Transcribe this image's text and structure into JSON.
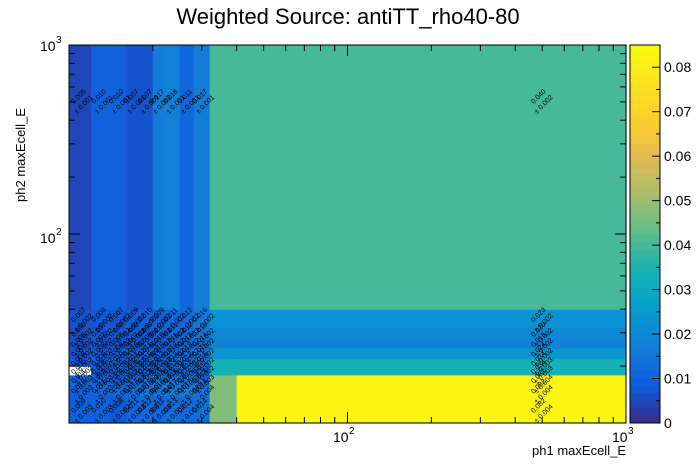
{
  "chart_data": {
    "type": "heatmap",
    "title": "Weighted Source: antiTT_rho40-80",
    "xlabel": "ph1 maxEcell_E",
    "ylabel": "ph2 maxEcell_E",
    "x_scale": "log",
    "y_scale": "log",
    "xlim": [
      10,
      1000
    ],
    "ylim": [
      10,
      1000
    ],
    "x_tick_labels": [
      {
        "value": 100,
        "base": "10",
        "exp": "2"
      },
      {
        "value": 1000,
        "base": "10",
        "exp": "3"
      }
    ],
    "y_tick_labels": [
      {
        "value": 100,
        "base": "10",
        "exp": "2"
      },
      {
        "value": 1000,
        "base": "10",
        "exp": "3"
      }
    ],
    "x_edges": [
      10,
      12,
      14,
      16,
      18,
      20,
      22,
      25,
      28,
      32,
      40,
      1000
    ],
    "y_edges": [
      10,
      14,
      16,
      18,
      20,
      22,
      25,
      28,
      32,
      40,
      1000
    ],
    "zlim": [
      0,
      0.085
    ],
    "z_ticks": [
      "0",
      "0.01",
      "0.02",
      "0.03",
      "0.04",
      "0.05",
      "0.06",
      "0.07",
      "0.08"
    ],
    "cells": [
      {
        "i": 0,
        "j": 0,
        "v": 0.009,
        "e": "0.003"
      },
      {
        "i": 1,
        "j": 0,
        "v": 0.01,
        "e": "0.003"
      },
      {
        "i": 2,
        "j": 0,
        "v": 0.008,
        "e": "0.002"
      },
      {
        "i": 3,
        "j": 0,
        "v": 0.011,
        "e": "0.003"
      },
      {
        "i": 4,
        "j": 0,
        "v": 0.012,
        "e": "0.003"
      },
      {
        "i": 5,
        "j": 0,
        "v": 0.011,
        "e": "0.003"
      },
      {
        "i": 6,
        "j": 0,
        "v": 0.013,
        "e": "0.003"
      },
      {
        "i": 7,
        "j": 0,
        "v": 0.012,
        "e": "0.004"
      },
      {
        "i": 8,
        "j": 0,
        "v": 0.014,
        "e": "0.004"
      },
      {
        "i": 9,
        "j": 0,
        "v": 0.047,
        "e": "0.006"
      },
      {
        "i": 10,
        "j": 0,
        "v": 0.082,
        "e": "0.004"
      },
      {
        "i": 0,
        "j": 1,
        "v": 0.01,
        "e": "0.003"
      },
      {
        "i": 1,
        "j": 1,
        "v": 0.011,
        "e": "0.003"
      },
      {
        "i": 2,
        "j": 1,
        "v": 0.012,
        "e": "0.003"
      },
      {
        "i": 3,
        "j": 1,
        "v": 0.013,
        "e": "0.003"
      },
      {
        "i": 4,
        "j": 1,
        "v": 0.015,
        "e": "0.003"
      },
      {
        "i": 5,
        "j": 1,
        "v": 0.016,
        "e": "0.004"
      },
      {
        "i": 6,
        "j": 1,
        "v": 0.017,
        "e": "0.004"
      },
      {
        "i": 7,
        "j": 1,
        "v": 0.018,
        "e": "0.004"
      },
      {
        "i": 8,
        "j": 1,
        "v": 0.014,
        "e": "0.004"
      },
      {
        "i": 9,
        "j": 1,
        "v": 0.047,
        "e": "0.004"
      },
      {
        "i": 10,
        "j": 1,
        "v": 0.082,
        "e": "0.004"
      },
      {
        "i": 0,
        "j": 2,
        "v": 0.011,
        "e": "0.003"
      },
      {
        "i": 1,
        "j": 2,
        "v": 0.01,
        "e": "0.003"
      },
      {
        "i": 2,
        "j": 2,
        "v": 0.009,
        "e": "0.003"
      },
      {
        "i": 3,
        "j": 2,
        "v": 0.012,
        "e": "0.003"
      },
      {
        "i": 4,
        "j": 2,
        "v": 0.013,
        "e": "0.003"
      },
      {
        "i": 5,
        "j": 2,
        "v": 0.015,
        "e": "0.003"
      },
      {
        "i": 6,
        "j": 2,
        "v": 0.016,
        "e": "0.003"
      },
      {
        "i": 7,
        "j": 2,
        "v": 0.014,
        "e": "0.003"
      },
      {
        "i": 8,
        "j": 2,
        "v": 0.013,
        "e": "0.003"
      },
      {
        "i": 9,
        "j": 2,
        "v": 0.047,
        "e": "0.004"
      },
      {
        "i": 10,
        "j": 2,
        "v": 0.082,
        "e": "0.004"
      },
      {
        "i": 0,
        "j": 3,
        "v": 0.0,
        "e": "0.002"
      },
      {
        "i": 1,
        "j": 3,
        "v": 0.008,
        "e": "0.002"
      },
      {
        "i": 2,
        "j": 3,
        "v": 0.01,
        "e": "0.002"
      },
      {
        "i": 3,
        "j": 3,
        "v": 0.009,
        "e": "0.002"
      },
      {
        "i": 4,
        "j": 3,
        "v": 0.011,
        "e": "0.002"
      },
      {
        "i": 5,
        "j": 3,
        "v": 0.012,
        "e": "0.002"
      },
      {
        "i": 6,
        "j": 3,
        "v": 0.013,
        "e": "0.003"
      },
      {
        "i": 7,
        "j": 3,
        "v": 0.012,
        "e": "0.002"
      },
      {
        "i": 8,
        "j": 3,
        "v": 0.011,
        "e": "0.002"
      },
      {
        "i": 9,
        "j": 3,
        "v": 0.034,
        "e": "0.003"
      },
      {
        "i": 10,
        "j": 3,
        "v": 0.034,
        "e": "0.003"
      },
      {
        "i": 0,
        "j": 4,
        "v": 0.008,
        "e": "0.002"
      },
      {
        "i": 1,
        "j": 4,
        "v": 0.009,
        "e": "0.002"
      },
      {
        "i": 2,
        "j": 4,
        "v": 0.01,
        "e": "0.002"
      },
      {
        "i": 3,
        "j": 4,
        "v": 0.011,
        "e": "0.002"
      },
      {
        "i": 4,
        "j": 4,
        "v": 0.01,
        "e": "0.002"
      },
      {
        "i": 5,
        "j": 4,
        "v": 0.012,
        "e": "0.002"
      },
      {
        "i": 6,
        "j": 4,
        "v": 0.013,
        "e": "0.002"
      },
      {
        "i": 7,
        "j": 4,
        "v": 0.012,
        "e": "0.002"
      },
      {
        "i": 8,
        "j": 4,
        "v": 0.015,
        "e": "0.002"
      },
      {
        "i": 9,
        "j": 4,
        "v": 0.034,
        "e": "0.003"
      },
      {
        "i": 10,
        "j": 4,
        "v": 0.034,
        "e": "0.003"
      },
      {
        "i": 0,
        "j": 5,
        "v": 0.007,
        "e": "0.002"
      },
      {
        "i": 1,
        "j": 5,
        "v": 0.008,
        "e": "0.002"
      },
      {
        "i": 2,
        "j": 5,
        "v": 0.009,
        "e": "0.002"
      },
      {
        "i": 3,
        "j": 5,
        "v": 0.01,
        "e": "0.002"
      },
      {
        "i": 4,
        "j": 5,
        "v": 0.011,
        "e": "0.002"
      },
      {
        "i": 5,
        "j": 5,
        "v": 0.01,
        "e": "0.002"
      },
      {
        "i": 6,
        "j": 5,
        "v": 0.012,
        "e": "0.002"
      },
      {
        "i": 7,
        "j": 5,
        "v": 0.013,
        "e": "0.002"
      },
      {
        "i": 8,
        "j": 5,
        "v": 0.015,
        "e": "0.002"
      },
      {
        "i": 9,
        "j": 5,
        "v": 0.024,
        "e": "0.002"
      },
      {
        "i": 10,
        "j": 5,
        "v": 0.024,
        "e": "0.002"
      },
      {
        "i": 0,
        "j": 6,
        "v": 0.006,
        "e": "0.002"
      },
      {
        "i": 1,
        "j": 6,
        "v": 0.007,
        "e": "0.002"
      },
      {
        "i": 2,
        "j": 6,
        "v": 0.008,
        "e": "0.002"
      },
      {
        "i": 3,
        "j": 6,
        "v": 0.007,
        "e": "0.002"
      },
      {
        "i": 4,
        "j": 6,
        "v": 0.009,
        "e": "0.002"
      },
      {
        "i": 5,
        "j": 6,
        "v": 0.01,
        "e": "0.002"
      },
      {
        "i": 6,
        "j": 6,
        "v": 0.011,
        "e": "0.002"
      },
      {
        "i": 7,
        "j": 6,
        "v": 0.012,
        "e": "0.002"
      },
      {
        "i": 8,
        "j": 6,
        "v": 0.014,
        "e": "0.002"
      },
      {
        "i": 9,
        "j": 6,
        "v": 0.018,
        "e": "0.002"
      },
      {
        "i": 10,
        "j": 6,
        "v": 0.018,
        "e": "0.002"
      },
      {
        "i": 0,
        "j": 7,
        "v": 0.006,
        "e": "0.002"
      },
      {
        "i": 1,
        "j": 7,
        "v": 0.007,
        "e": "0.002"
      },
      {
        "i": 2,
        "j": 7,
        "v": 0.008,
        "e": "0.002"
      },
      {
        "i": 3,
        "j": 7,
        "v": 0.009,
        "e": "0.002"
      },
      {
        "i": 4,
        "j": 7,
        "v": 0.008,
        "e": "0.002"
      },
      {
        "i": 5,
        "j": 7,
        "v": 0.01,
        "e": "0.002"
      },
      {
        "i": 6,
        "j": 7,
        "v": 0.011,
        "e": "0.002"
      },
      {
        "i": 7,
        "j": 7,
        "v": 0.012,
        "e": "0.002"
      },
      {
        "i": 8,
        "j": 7,
        "v": 0.016,
        "e": "0.002"
      },
      {
        "i": 9,
        "j": 7,
        "v": 0.02,
        "e": "0.002"
      },
      {
        "i": 10,
        "j": 7,
        "v": 0.02,
        "e": "0.002"
      },
      {
        "i": 0,
        "j": 8,
        "v": 0.007,
        "e": "0.002"
      },
      {
        "i": 1,
        "j": 8,
        "v": 0.008,
        "e": "0.002"
      },
      {
        "i": 2,
        "j": 8,
        "v": 0.007,
        "e": "0.002"
      },
      {
        "i": 3,
        "j": 8,
        "v": 0.009,
        "e": "0.002"
      },
      {
        "i": 4,
        "j": 8,
        "v": 0.01,
        "e": "0.002"
      },
      {
        "i": 5,
        "j": 8,
        "v": 0.009,
        "e": "0.002"
      },
      {
        "i": 6,
        "j": 8,
        "v": 0.011,
        "e": "0.002"
      },
      {
        "i": 7,
        "j": 8,
        "v": 0.012,
        "e": "0.002"
      },
      {
        "i": 8,
        "j": 8,
        "v": 0.016,
        "e": "0.002"
      },
      {
        "i": 9,
        "j": 8,
        "v": 0.023,
        "e": "0.002"
      },
      {
        "i": 10,
        "j": 8,
        "v": 0.023,
        "e": "0.002"
      },
      {
        "i": 0,
        "j": 9,
        "v": 0.005,
        "e": "0.001"
      },
      {
        "i": 1,
        "j": 9,
        "v": 0.01,
        "e": "0.001"
      },
      {
        "i": 2,
        "j": 9,
        "v": 0.01,
        "e": "0.001"
      },
      {
        "i": 3,
        "j": 9,
        "v": 0.007,
        "e": "0.001"
      },
      {
        "i": 4,
        "j": 9,
        "v": 0.007,
        "e": "0.001"
      },
      {
        "i": 5,
        "j": 9,
        "v": 0.017,
        "e": "0.002"
      },
      {
        "i": 6,
        "j": 9,
        "v": 0.018,
        "e": "0.001"
      },
      {
        "i": 7,
        "j": 9,
        "v": 0.011,
        "e": "0.001"
      },
      {
        "i": 8,
        "j": 9,
        "v": 0.017,
        "e": "0.001"
      },
      {
        "i": 9,
        "j": 9,
        "v": 0.04,
        "e": "0.002"
      },
      {
        "i": 10,
        "j": 9,
        "v": 0.04,
        "e": "0.002"
      }
    ],
    "labeled_columns": [
      0,
      1,
      2,
      3,
      4,
      5,
      6,
      7,
      8,
      10
    ],
    "labeled_rows": [
      0,
      1,
      2,
      3,
      4,
      5,
      6,
      7,
      8,
      9
    ]
  }
}
